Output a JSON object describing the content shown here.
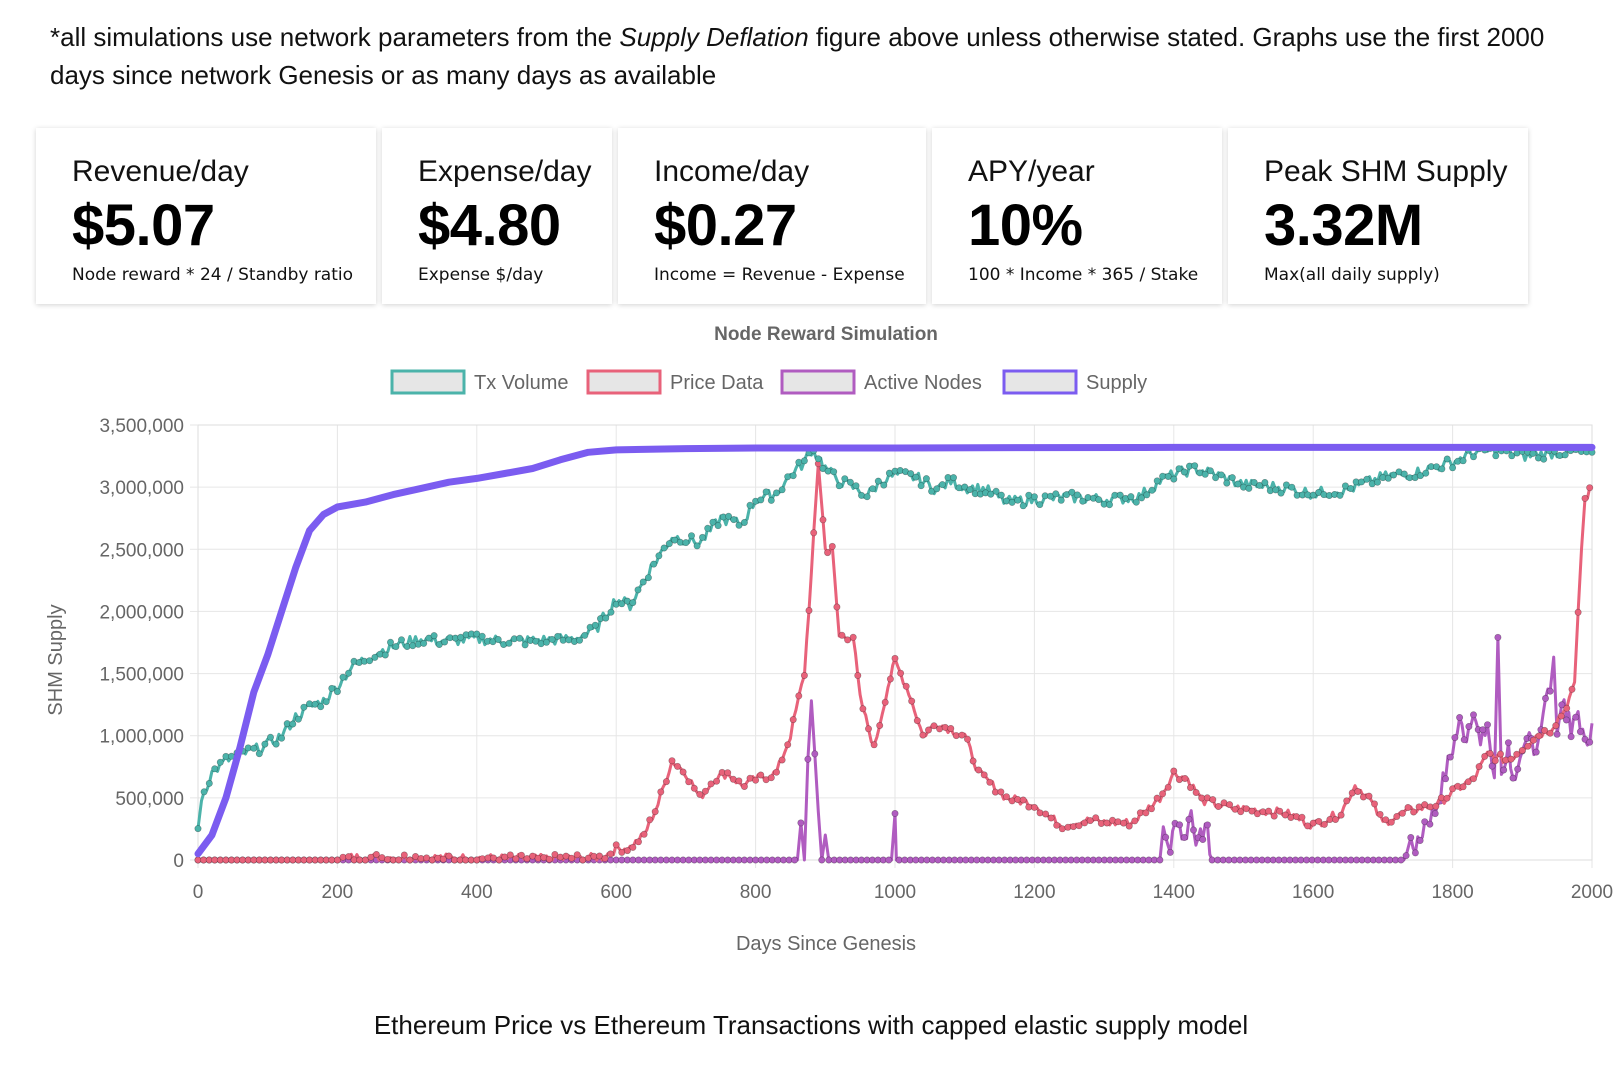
{
  "intro": {
    "part1": "*all simulations use network parameters from the ",
    "emphasis": "Supply Deflation",
    "part2": "  figure above unless otherwise stated. Graphs use the first 2000 days since network Genesis or as many days as available"
  },
  "cards": [
    {
      "label": "Revenue/day",
      "value": "$5.07",
      "note": "Node reward * 24 / Standby ratio"
    },
    {
      "label": "Expense/day",
      "value": "$4.80",
      "note": "Expense $/day"
    },
    {
      "label": "Income/day",
      "value": "$0.27",
      "note": "Income = Revenue - Expense"
    },
    {
      "label": "APY/year",
      "value": "10%",
      "note": "100 * Income * 365 / Stake"
    },
    {
      "label": "Peak SHM Supply",
      "value": "3.32M",
      "note": "Max(all daily supply)"
    }
  ],
  "caption": "Ethereum Price vs Ethereum Transactions with capped elastic supply model",
  "colors": {
    "tx": "#4bb3aa",
    "price": "#e8627a",
    "nodes": "#b05cc0",
    "supply": "#7b5cf0",
    "grid": "#e6e6e6",
    "axis_text": "#666666"
  },
  "chart_data": {
    "type": "line",
    "title": "Node Reward Simulation",
    "xlabel": "Days Since Genesis",
    "ylabel": "SHM Supply",
    "xlim": [
      0,
      2000
    ],
    "ylim": [
      0,
      3500000
    ],
    "xticks": [
      0,
      200,
      400,
      600,
      800,
      1000,
      1200,
      1400,
      1600,
      1800,
      2000
    ],
    "yticks": [
      0,
      500000,
      1000000,
      1500000,
      2000000,
      2500000,
      3000000,
      3500000
    ],
    "ytick_labels": [
      "0",
      "500,000",
      "1,000,000",
      "1,500,000",
      "2,000,000",
      "2,500,000",
      "3,000,000",
      "3,500,000"
    ],
    "legend_position": "top",
    "grid": true,
    "series": [
      {
        "name": "Tx Volume",
        "points": [
          [
            0,
            250000
          ],
          [
            5,
            500000
          ],
          [
            20,
            700000
          ],
          [
            40,
            800000
          ],
          [
            60,
            850000
          ],
          [
            80,
            880000
          ],
          [
            100,
            930000
          ],
          [
            120,
            1000000
          ],
          [
            140,
            1150000
          ],
          [
            160,
            1230000
          ],
          [
            180,
            1280000
          ],
          [
            200,
            1400000
          ],
          [
            220,
            1550000
          ],
          [
            250,
            1650000
          ],
          [
            280,
            1720000
          ],
          [
            300,
            1750000
          ],
          [
            320,
            1780000
          ],
          [
            350,
            1760000
          ],
          [
            400,
            1780000
          ],
          [
            450,
            1760000
          ],
          [
            500,
            1770000
          ],
          [
            540,
            1780000
          ],
          [
            570,
            1850000
          ],
          [
            600,
            2100000
          ],
          [
            620,
            2050000
          ],
          [
            650,
            2350000
          ],
          [
            680,
            2600000
          ],
          [
            700,
            2580000
          ],
          [
            720,
            2550000
          ],
          [
            750,
            2750000
          ],
          [
            780,
            2700000
          ],
          [
            800,
            2900000
          ],
          [
            830,
            2950000
          ],
          [
            850,
            3100000
          ],
          [
            870,
            3200000
          ],
          [
            880,
            3300000
          ],
          [
            890,
            3250000
          ],
          [
            900,
            3150000
          ],
          [
            920,
            3050000
          ],
          [
            940,
            3000000
          ],
          [
            960,
            2930000
          ],
          [
            980,
            3050000
          ],
          [
            1000,
            3100000
          ],
          [
            1030,
            3080000
          ],
          [
            1060,
            2980000
          ],
          [
            1080,
            3050000
          ],
          [
            1100,
            3000000
          ],
          [
            1130,
            2980000
          ],
          [
            1160,
            2880000
          ],
          [
            1200,
            2900000
          ],
          [
            1250,
            2920000
          ],
          [
            1300,
            2900000
          ],
          [
            1350,
            2920000
          ],
          [
            1380,
            3050000
          ],
          [
            1400,
            3100000
          ],
          [
            1430,
            3150000
          ],
          [
            1460,
            3100000
          ],
          [
            1500,
            3020000
          ],
          [
            1550,
            3000000
          ],
          [
            1600,
            2950000
          ],
          [
            1650,
            2980000
          ],
          [
            1700,
            3080000
          ],
          [
            1750,
            3120000
          ],
          [
            1800,
            3200000
          ],
          [
            1830,
            3280000
          ],
          [
            1870,
            3300000
          ],
          [
            1900,
            3250000
          ],
          [
            1950,
            3280000
          ],
          [
            2000,
            3280000
          ]
        ]
      },
      {
        "name": "Price Data",
        "points": [
          [
            0,
            0
          ],
          [
            200,
            0
          ],
          [
            220,
            20000
          ],
          [
            300,
            20000
          ],
          [
            400,
            15000
          ],
          [
            500,
            10000
          ],
          [
            580,
            20000
          ],
          [
            600,
            90000
          ],
          [
            620,
            100000
          ],
          [
            640,
            200000
          ],
          [
            660,
            450000
          ],
          [
            680,
            800000
          ],
          [
            700,
            700000
          ],
          [
            720,
            500000
          ],
          [
            740,
            650000
          ],
          [
            760,
            700000
          ],
          [
            780,
            600000
          ],
          [
            800,
            650000
          ],
          [
            830,
            700000
          ],
          [
            850,
            1000000
          ],
          [
            870,
            1500000
          ],
          [
            880,
            2300000
          ],
          [
            890,
            3200000
          ],
          [
            900,
            2500000
          ],
          [
            910,
            2500000
          ],
          [
            920,
            1800000
          ],
          [
            940,
            1800000
          ],
          [
            950,
            1300000
          ],
          [
            970,
            900000
          ],
          [
            990,
            1400000
          ],
          [
            1000,
            1600000
          ],
          [
            1020,
            1350000
          ],
          [
            1040,
            1000000
          ],
          [
            1060,
            1100000
          ],
          [
            1080,
            1050000
          ],
          [
            1100,
            1000000
          ],
          [
            1120,
            700000
          ],
          [
            1140,
            600000
          ],
          [
            1160,
            500000
          ],
          [
            1200,
            450000
          ],
          [
            1220,
            350000
          ],
          [
            1240,
            280000
          ],
          [
            1280,
            320000
          ],
          [
            1300,
            300000
          ],
          [
            1340,
            300000
          ],
          [
            1380,
            500000
          ],
          [
            1400,
            700000
          ],
          [
            1420,
            650000
          ],
          [
            1440,
            480000
          ],
          [
            1480,
            420000
          ],
          [
            1520,
            400000
          ],
          [
            1560,
            380000
          ],
          [
            1600,
            280000
          ],
          [
            1640,
            380000
          ],
          [
            1660,
            600000
          ],
          [
            1680,
            500000
          ],
          [
            1700,
            300000
          ],
          [
            1740,
            400000
          ],
          [
            1780,
            450000
          ],
          [
            1800,
            550000
          ],
          [
            1830,
            650000
          ],
          [
            1850,
            850000
          ],
          [
            1880,
            800000
          ],
          [
            1900,
            900000
          ],
          [
            1920,
            1000000
          ],
          [
            1940,
            1050000
          ],
          [
            1960,
            1200000
          ],
          [
            1975,
            1400000
          ],
          [
            1980,
            2000000
          ],
          [
            1985,
            2500000
          ],
          [
            1990,
            2900000
          ],
          [
            2000,
            3000000
          ]
        ]
      },
      {
        "name": "Active Nodes",
        "points": [
          [
            0,
            0
          ],
          [
            860,
            0
          ],
          [
            865,
            300000
          ],
          [
            870,
            0
          ],
          [
            875,
            800000
          ],
          [
            880,
            1350000
          ],
          [
            885,
            900000
          ],
          [
            890,
            400000
          ],
          [
            895,
            0
          ],
          [
            900,
            200000
          ],
          [
            905,
            0
          ],
          [
            995,
            0
          ],
          [
            1000,
            450000
          ],
          [
            1002,
            0
          ],
          [
            1380,
            0
          ],
          [
            1385,
            200000
          ],
          [
            1395,
            100000
          ],
          [
            1405,
            350000
          ],
          [
            1415,
            150000
          ],
          [
            1425,
            400000
          ],
          [
            1435,
            100000
          ],
          [
            1445,
            300000
          ],
          [
            1455,
            0
          ],
          [
            1730,
            0
          ],
          [
            1740,
            150000
          ],
          [
            1750,
            100000
          ],
          [
            1760,
            300000
          ],
          [
            1775,
            400000
          ],
          [
            1790,
            700000
          ],
          [
            1800,
            900000
          ],
          [
            1810,
            1100000
          ],
          [
            1820,
            1000000
          ],
          [
            1830,
            1250000
          ],
          [
            1840,
            900000
          ],
          [
            1850,
            1100000
          ],
          [
            1860,
            600000
          ],
          [
            1865,
            1800000
          ],
          [
            1870,
            700000
          ],
          [
            1880,
            900000
          ],
          [
            1890,
            600000
          ],
          [
            1900,
            800000
          ],
          [
            1910,
            1000000
          ],
          [
            1920,
            900000
          ],
          [
            1930,
            1200000
          ],
          [
            1940,
            1400000
          ],
          [
            1945,
            1550000
          ],
          [
            1950,
            1100000
          ],
          [
            1960,
            1300000
          ],
          [
            1970,
            1000000
          ],
          [
            1980,
            1200000
          ],
          [
            1990,
            900000
          ],
          [
            2000,
            1100000
          ]
        ]
      },
      {
        "name": "Supply",
        "points": [
          [
            0,
            50000
          ],
          [
            20,
            200000
          ],
          [
            40,
            500000
          ],
          [
            60,
            900000
          ],
          [
            80,
            1350000
          ],
          [
            100,
            1650000
          ],
          [
            120,
            2000000
          ],
          [
            140,
            2350000
          ],
          [
            160,
            2650000
          ],
          [
            180,
            2780000
          ],
          [
            200,
            2840000
          ],
          [
            240,
            2880000
          ],
          [
            280,
            2940000
          ],
          [
            320,
            2990000
          ],
          [
            360,
            3040000
          ],
          [
            400,
            3070000
          ],
          [
            440,
            3110000
          ],
          [
            480,
            3150000
          ],
          [
            520,
            3220000
          ],
          [
            560,
            3280000
          ],
          [
            600,
            3300000
          ],
          [
            700,
            3310000
          ],
          [
            800,
            3315000
          ],
          [
            1000,
            3315000
          ],
          [
            1200,
            3318000
          ],
          [
            1400,
            3320000
          ],
          [
            1600,
            3320000
          ],
          [
            1800,
            3320000
          ],
          [
            2000,
            3320000
          ]
        ]
      }
    ]
  }
}
